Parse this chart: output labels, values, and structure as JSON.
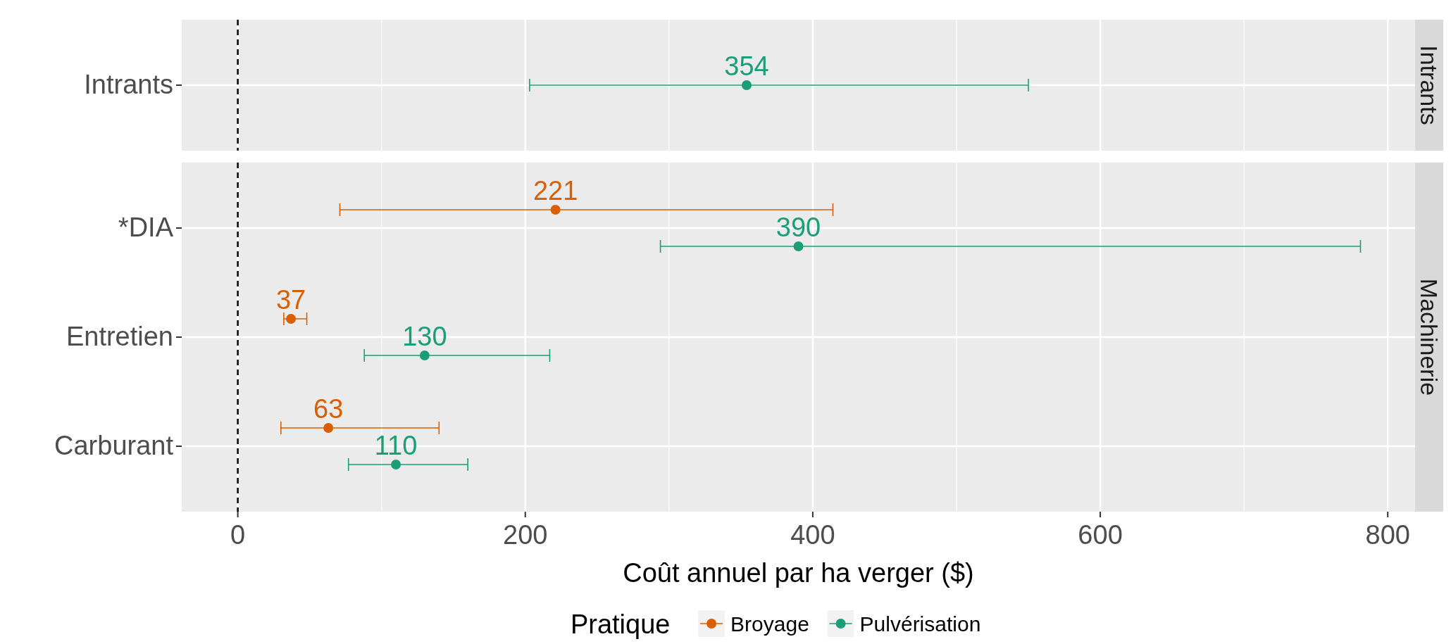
{
  "chart_data": [
    {
      "type": "scatter",
      "orientation": "horizontal",
      "title": "Intrants",
      "categories": [
        "Intrants"
      ],
      "series": [
        {
          "color": "#1b9e77",
          "values": [
            354
          ],
          "errors": [
            [
              203,
              550
            ]
          ]
        }
      ],
      "xlim": [
        -39,
        819
      ],
      "xticks": [
        0,
        200,
        400,
        600,
        800
      ],
      "tick_labels": "y",
      "grid": true,
      "marker": "circle",
      "data_labels": true,
      "ref_lines": [
        {
          "axis": "x",
          "value": 0,
          "line_style": "dashed",
          "color": "#000000"
        }
      ]
    },
    {
      "type": "scatter",
      "orientation": "horizontal",
      "title": "Machinerie",
      "categories": [
        "*DIA",
        "Entretien",
        "Carburant"
      ],
      "series": [
        {
          "name": "Broyage",
          "color": "#d95f02",
          "values": [
            221,
            37,
            63
          ],
          "errors": [
            [
              71,
              414
            ],
            [
              32,
              48
            ],
            [
              30,
              140
            ]
          ]
        },
        {
          "name": "Pulvérisation",
          "color": "#1b9e77",
          "values": [
            390,
            130,
            110
          ],
          "errors": [
            [
              294,
              781
            ],
            [
              88,
              217
            ],
            [
              77,
              160
            ]
          ]
        }
      ],
      "xlim": [
        -39,
        819
      ],
      "xticks": [
        0,
        200,
        400,
        600,
        800
      ],
      "xlabel": "Coût annuel par ha verger ($)",
      "legend_title": "Pratique",
      "legend": "bottom",
      "grid": true,
      "marker": "circle",
      "data_labels": true,
      "ref_lines": [
        {
          "axis": "x",
          "value": 0,
          "line_style": "dashed",
          "color": "#000000"
        }
      ]
    }
  ]
}
